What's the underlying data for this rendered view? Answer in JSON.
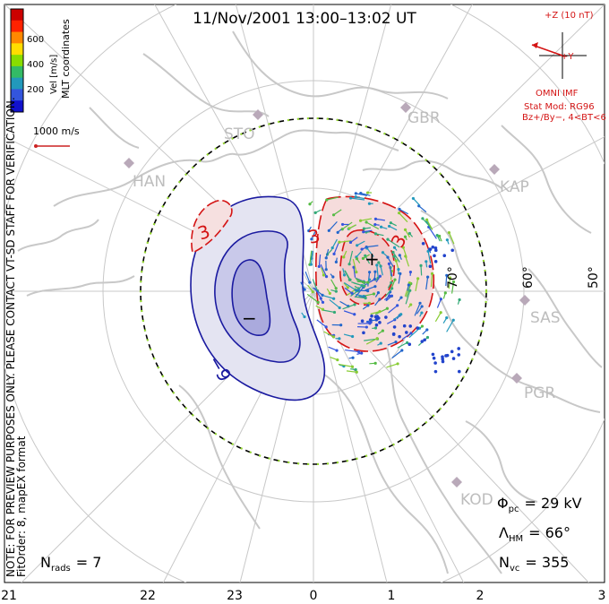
{
  "title": "11/Nov/2001  13:00–13:02  UT",
  "colorbar": {
    "label": "Vel [m/s]",
    "coords_label": "MLT coordinates",
    "ticks": [
      "600",
      "400",
      "200"
    ],
    "colors": [
      "#cc0000",
      "#ff2200",
      "#ff8800",
      "#ffdd00",
      "#88dd00",
      "#33bb66",
      "#2299bb",
      "#3355dd",
      "#1111cc"
    ]
  },
  "scale_label": "1000 m/s",
  "note": "NOTE: FOR PREVIEW PURPOSES ONLY. PLEASE CONTACT VT-SD STAFF FOR VERIFICATION.",
  "fitorder": "FitOrder: 8, mapEX format",
  "imf": {
    "z_label": "+Z (10 nT)",
    "y_label": "+Y",
    "source": "OMNI IMF",
    "model_line1": "Stat Mod: RG96",
    "model_line2": "Bz+/By−, 4<BT<6"
  },
  "radars": [
    "STO",
    "GBR",
    "HAN",
    "KAP",
    "SAS",
    "PGR",
    "KOD"
  ],
  "latitude_labels": [
    "70°",
    "60°",
    "50°"
  ],
  "contours": {
    "positive_label": "3",
    "positive_label2": "3",
    "positive_label3": "3",
    "negative_label": "−9",
    "max_marker": "+",
    "min_marker": "−"
  },
  "stats": {
    "phi_symbol": "Φ",
    "phi_sub": "pc",
    "phi_value": "= 29 kV",
    "lambda_symbol": "Λ",
    "lambda_sub": "HM",
    "lambda_value": "= 66°",
    "nvc_symbol": "N",
    "nvc_sub": "vc",
    "nvc_value": "= 355",
    "nrads_symbol": "N",
    "nrads_sub": "rads",
    "nrads_value": "= 7"
  },
  "mlt_ticks": [
    "21",
    "22",
    "23",
    "0",
    "1",
    "2",
    "3"
  ]
}
